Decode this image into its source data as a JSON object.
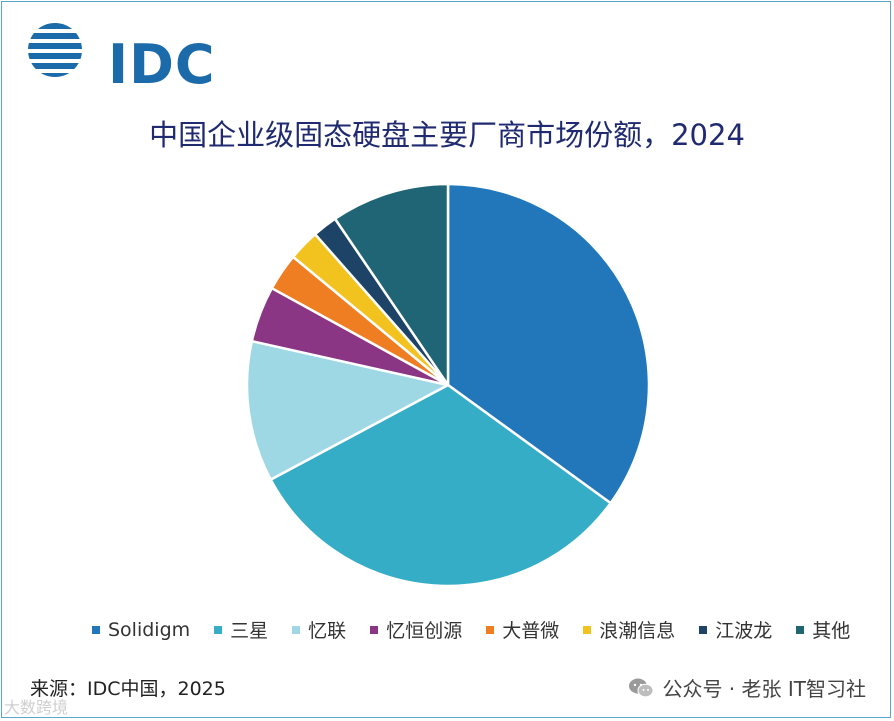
{
  "logo": {
    "text": "IDC",
    "icon": "idc-globe-logo",
    "color": "#1b6aa9"
  },
  "source": "来源：IDC中国，2025",
  "watermark": {
    "icon": "wechat-icon",
    "text": "公众号 · 老张 IT智习社"
  },
  "corner_mark": "大数跨境",
  "chart_data": {
    "type": "pie",
    "title": "中国企业级固态硬盘主要厂商市场份额，2024",
    "legend_position": "bottom",
    "start_angle_deg": 0,
    "direction": "clockwise",
    "slices": [
      {
        "name": "Solidigm",
        "value": 35.0,
        "color": "#2277bb"
      },
      {
        "name": "三星",
        "value": 32.2,
        "color": "#35adc6"
      },
      {
        "name": "忆联",
        "value": 11.3,
        "color": "#9fd8e5"
      },
      {
        "name": "忆恒创源",
        "value": 4.5,
        "color": "#8a3685"
      },
      {
        "name": "大普微",
        "value": 3.0,
        "color": "#ef7d22"
      },
      {
        "name": "浪潮信息",
        "value": 2.5,
        "color": "#f2c21f"
      },
      {
        "name": "江波龙",
        "value": 2.0,
        "color": "#1d4466"
      },
      {
        "name": "其他",
        "value": 9.5,
        "color": "#1f6575"
      }
    ]
  }
}
